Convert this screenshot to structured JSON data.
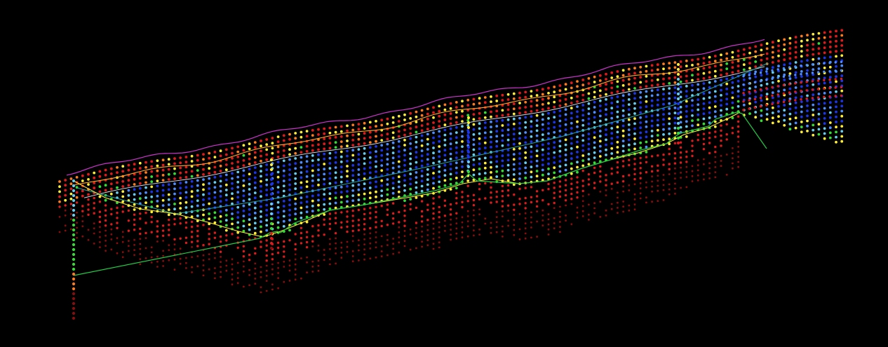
{
  "scene": {
    "background": "#000000",
    "colors": {
      "red": "#e01a1a",
      "orange": "#ff7a1a",
      "yellow": "#ffee33",
      "green": "#33dd33",
      "cyan": "#66ccee",
      "lightblue": "#4d8cff",
      "blue": "#1b35e8",
      "darkred": "#8a0c0c",
      "surface_line": "#cc33cc",
      "water_line": "#ffaa22",
      "interface_line": "#d8e8f8",
      "bedrock_line": "#22cc44",
      "base_line": "#1ea8a8"
    },
    "legend": []
  }
}
